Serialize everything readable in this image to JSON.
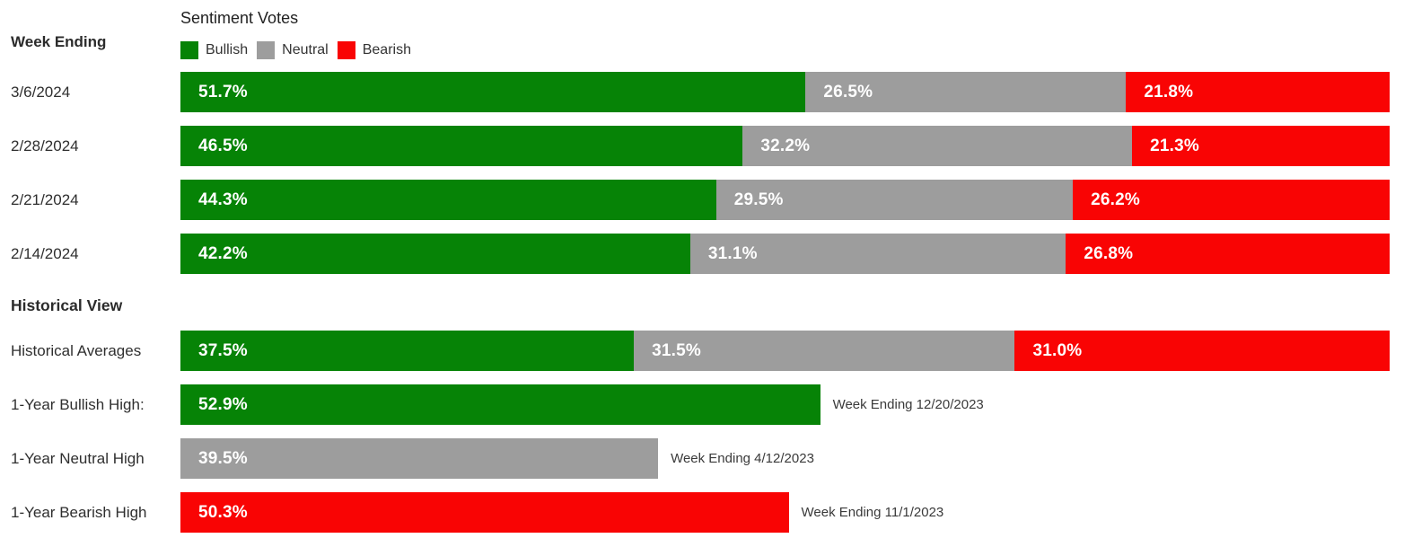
{
  "chart_data": {
    "type": "bar",
    "orientation": "horizontal",
    "stacked": true,
    "title": "Sentiment Votes",
    "row_header": "Week Ending",
    "value_suffix": "%",
    "xlim": [
      0,
      100
    ],
    "legend_position": "top",
    "series_names": [
      "Bullish",
      "Neutral",
      "Bearish"
    ],
    "series_colors": {
      "Bullish": "#068306",
      "Neutral": "#9D9D9D",
      "Bearish": "#F90404"
    },
    "weekly": {
      "categories": [
        "3/6/2024",
        "2/28/2024",
        "2/21/2024",
        "2/14/2024"
      ],
      "series": [
        {
          "name": "Bullish",
          "values": [
            51.7,
            46.5,
            44.3,
            42.2
          ]
        },
        {
          "name": "Neutral",
          "values": [
            26.5,
            32.2,
            29.5,
            31.1
          ]
        },
        {
          "name": "Bearish",
          "values": [
            21.8,
            21.3,
            26.2,
            26.8
          ]
        }
      ]
    },
    "historical": {
      "section_title": "Historical View",
      "averages": {
        "label": "Historical Averages",
        "values": [
          37.5,
          31.5,
          31.0
        ]
      },
      "highs": [
        {
          "label": "1-Year Bullish High:",
          "series": "Bullish",
          "value": 52.9,
          "annotation": "Week Ending 12/20/2023"
        },
        {
          "label": "1-Year Neutral High",
          "series": "Neutral",
          "value": 39.5,
          "annotation": "Week Ending 4/12/2023"
        },
        {
          "label": "1-Year Bearish High",
          "series": "Bearish",
          "value": 50.3,
          "annotation": "Week Ending 11/1/2023"
        }
      ]
    }
  },
  "colors": {
    "background": "#ffffff",
    "header_text": "#2b2b2b",
    "label_text": "#2f2f2f",
    "value_text": "#ffffff",
    "annotation_text": "#3a3a3a"
  }
}
